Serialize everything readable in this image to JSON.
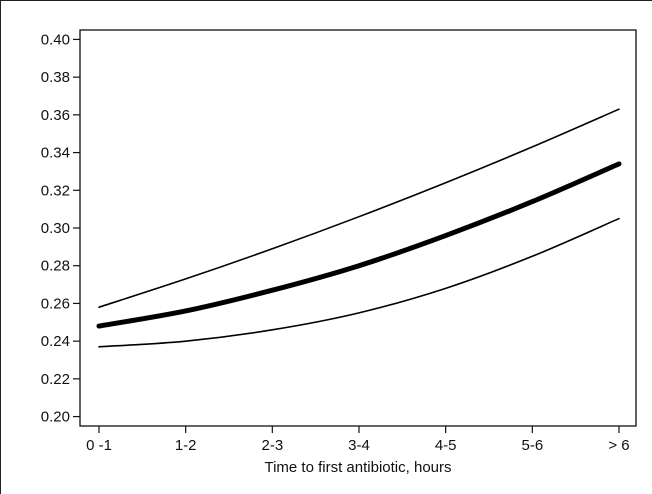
{
  "chart_data": {
    "type": "line",
    "title": "",
    "xlabel": "Time to first antibiotic, hours",
    "ylabel": "",
    "categories": [
      "0 -1",
      "1-2",
      "2-3",
      "3-4",
      "4-5",
      "5-6",
      "> 6"
    ],
    "ylim": [
      0.195,
      0.405
    ],
    "yticks": [
      "0.20",
      "0.22",
      "0.24",
      "0.26",
      "0.28",
      "0.30",
      "0.32",
      "0.34",
      "0.36",
      "0.38",
      "0.40"
    ],
    "grid": false,
    "legend": "none",
    "series": [
      {
        "role": "upper-ci",
        "values": [
          0.258,
          0.273,
          0.289,
          0.306,
          0.324,
          0.343,
          0.363
        ],
        "color": "#000000"
      },
      {
        "role": "estimate",
        "values": [
          0.248,
          0.256,
          0.267,
          0.28,
          0.296,
          0.314,
          0.334
        ],
        "color": "#000000"
      },
      {
        "role": "lower-ci",
        "values": [
          0.237,
          0.24,
          0.246,
          0.255,
          0.268,
          0.285,
          0.305
        ],
        "color": "#000000"
      }
    ]
  }
}
